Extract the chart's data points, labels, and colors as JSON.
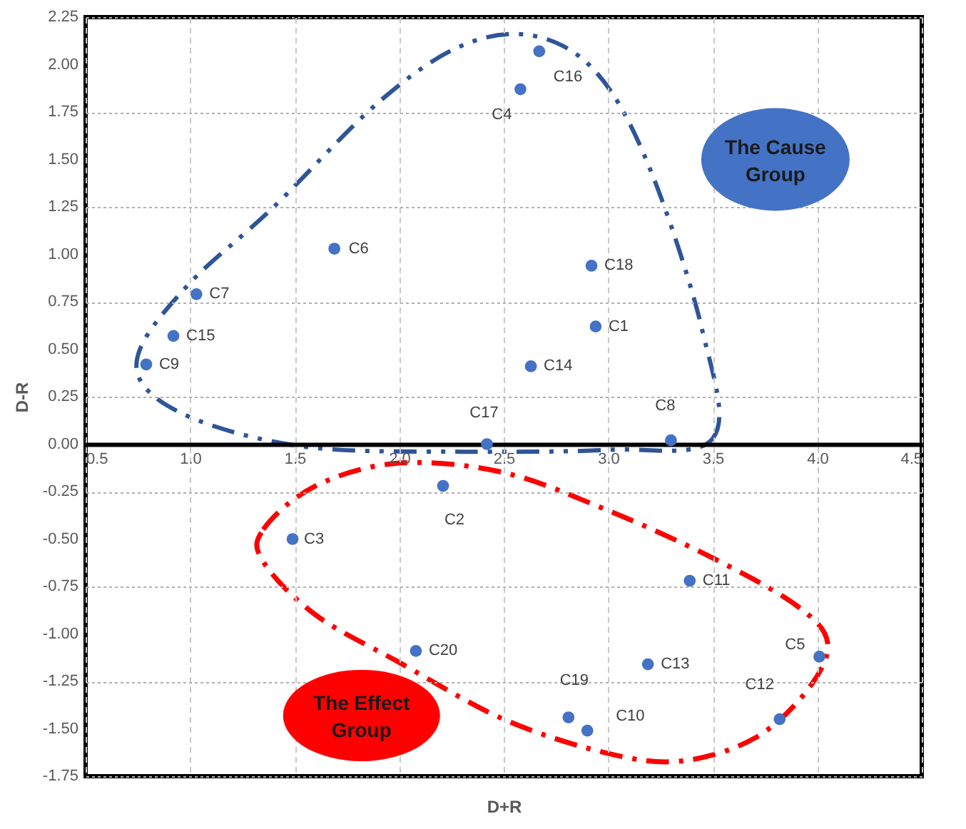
{
  "chart_data": {
    "type": "scatter",
    "xlabel": "D+R",
    "ylabel": "D-R",
    "xlim": [
      0.5,
      4.5
    ],
    "xticks": [
      0.5,
      {
        "value": 1,
        "label": "1.0"
      },
      1.5,
      {
        "value": 2,
        "label": "2.0"
      },
      2.5,
      {
        "value": 3,
        "label": "3.0"
      },
      3.5,
      {
        "value": 4,
        "label": "4.0"
      },
      4.5
    ],
    "ylim": [
      -1.75,
      2.25
    ],
    "yticks": [
      -1.75,
      {
        "value": -1.5,
        "label": "-1.50"
      },
      -1.25,
      {
        "value": -1,
        "label": "-1.00"
      },
      -0.75,
      {
        "value": -0.5,
        "label": "-0.50"
      },
      -0.25,
      {
        "value": 0,
        "label": "0.00"
      },
      0.25,
      {
        "value": 0.5,
        "label": "0.50"
      },
      0.75,
      {
        "value": 1,
        "label": "1.00"
      },
      1.25,
      {
        "value": 1.5,
        "label": "1.50"
      },
      1.75,
      {
        "value": 2,
        "label": "2.00"
      },
      2.25
    ],
    "grid": true,
    "marker": "circle",
    "annotations": [
      "The Cause Group",
      "The Effect Group"
    ],
    "series": [
      {
        "name": "C16",
        "color": "#4472c4",
        "x": [
          2.67
        ],
        "values": [
          2.07
        ]
      },
      {
        "name": "C4",
        "color": "#4472c4",
        "x": [
          2.58
        ],
        "values": [
          1.87
        ]
      },
      {
        "name": "C6",
        "color": "#4472c4",
        "x": [
          1.69
        ],
        "values": [
          1.03
        ]
      },
      {
        "name": "C18",
        "color": "#4472c4",
        "x": [
          2.92
        ],
        "values": [
          0.94
        ]
      },
      {
        "name": "C7",
        "color": "#4472c4",
        "x": [
          1.03
        ],
        "values": [
          0.79
        ]
      },
      {
        "name": "C1",
        "color": "#4472c4",
        "x": [
          2.94
        ],
        "values": [
          0.62
        ]
      },
      {
        "name": "C15",
        "color": "#4472c4",
        "x": [
          0.92
        ],
        "values": [
          0.57
        ]
      },
      {
        "name": "C9",
        "color": "#4472c4",
        "x": [
          0.79
        ],
        "values": [
          0.42
        ]
      },
      {
        "name": "C14",
        "color": "#4472c4",
        "x": [
          2.63
        ],
        "values": [
          0.41
        ]
      },
      {
        "name": "C17",
        "color": "#4472c4",
        "x": [
          2.42
        ],
        "values": [
          0.0
        ]
      },
      {
        "name": "C8",
        "color": "#4472c4",
        "x": [
          3.3
        ],
        "values": [
          0.02
        ]
      },
      {
        "name": "C2",
        "color": "#4472c4",
        "x": [
          2.21
        ],
        "values": [
          -0.22
        ]
      },
      {
        "name": "C3",
        "color": "#4472c4",
        "x": [
          1.49
        ],
        "values": [
          -0.5
        ]
      },
      {
        "name": "C11",
        "color": "#4472c4",
        "x": [
          3.39
        ],
        "values": [
          -0.72
        ]
      },
      {
        "name": "C5",
        "color": "#4472c4",
        "x": [
          4.01
        ],
        "values": [
          -1.12
        ]
      },
      {
        "name": "C20",
        "color": "#4472c4",
        "x": [
          2.08
        ],
        "values": [
          -1.09
        ]
      },
      {
        "name": "C13",
        "color": "#4472c4",
        "x": [
          3.19
        ],
        "values": [
          -1.16
        ]
      },
      {
        "name": "C19",
        "color": "#4472c4",
        "x": [
          2.81
        ],
        "values": [
          -1.44
        ]
      },
      {
        "name": "C10",
        "color": "#4472c4",
        "x": [
          2.9
        ],
        "values": [
          -1.51
        ]
      },
      {
        "name": "C12",
        "color": "#4472c4",
        "x": [
          3.82
        ],
        "values": [
          -1.45
        ]
      }
    ]
  }
}
